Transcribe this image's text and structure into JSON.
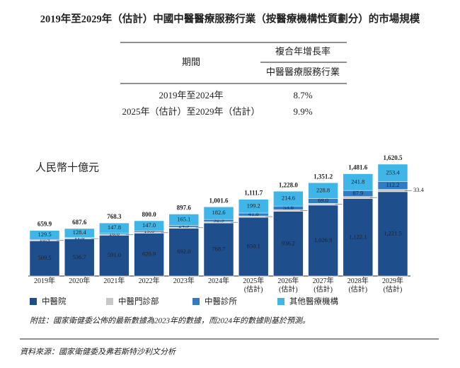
{
  "chart_data": {
    "type": "stacked-bar",
    "title": "2019年至2029年（估計）中國中醫醫療服務行業（按醫療機構性質劃分）的市場規模",
    "table": {
      "period_header": "期間",
      "cagr_header": "複合年增長率",
      "industry_header": "中醫醫療服務行業",
      "rows": [
        [
          "2019年至2024年",
          "8.7%"
        ],
        [
          "2025年（估計）至2029年（估計）",
          "9.9%"
        ]
      ]
    },
    "unit_label": "人民幣十億元",
    "categories": [
      "2019年",
      "2020年",
      "2021年",
      "2022年",
      "2023年",
      "2024年",
      "2025年\n(估計)",
      "2026年\n(估計)",
      "2027年\n(估計)",
      "2028年\n(估計)",
      "2029年\n(估計)"
    ],
    "series": [
      {
        "name": "中醫院",
        "color": "#1f4e8c",
        "text_color": "#ffffff",
        "values": [
          509.5,
          536.7,
          591.0,
          620.9,
          692.0,
          768.7,
          850.1,
          936.2,
          1026.9,
          1122.1,
          1221.5
        ],
        "value_labels": [
          "509.5",
          "536.7",
          "591.0",
          "620.9",
          "692.0",
          "768.7",
          "850.1",
          "936.2",
          "1,026.9",
          "1,122.1",
          "1,221.5"
        ]
      },
      {
        "name": "中醫門診部",
        "color": "#c8c8c8",
        "text_color": "#333333",
        "labels_outside": true,
        "values": [
          10.5,
          10.7,
          12.9,
          13.1,
          15.6,
          18.0,
          20.6,
          23.4,
          26.5,
          29.8,
          33.4
        ],
        "value_labels": [
          "10.5",
          "10.7",
          "12.9",
          "13.1",
          "15.6",
          "18.0",
          "20.6",
          "23.4",
          "26.5",
          "29.8",
          "33.4"
        ]
      },
      {
        "name": "中醫診所",
        "color": "#2f7bc4",
        "text_color": "#ffffff",
        "values": [
          10.4,
          11.8,
          16.6,
          19.0,
          24.9,
          32.3,
          41.8,
          53.8,
          69.0,
          87.9,
          112.2
        ],
        "value_labels": [
          "10.4",
          "11.8",
          "16.6",
          "19.0",
          "24.9",
          "32.3",
          "41.8",
          "53.8",
          "69.0",
          "87.9",
          "112.2"
        ]
      },
      {
        "name": "其他醫療機構",
        "color": "#3fb5e8",
        "text_color": "#1a2a4a",
        "values": [
          129.5,
          128.4,
          147.8,
          147.0,
          165.1,
          182.6,
          199.2,
          214.6,
          228.8,
          241.8,
          253.4
        ],
        "value_labels": [
          "129.5",
          "128.4",
          "147.8",
          "147.0",
          "165.1",
          "182.6",
          "199.2",
          "214.6",
          "228.8",
          "241.8",
          "253.4"
        ]
      }
    ],
    "totals": [
      659.9,
      687.6,
      768.3,
      800.0,
      897.6,
      1001.6,
      1111.7,
      1228.0,
      1351.2,
      1481.6,
      1620.5
    ],
    "total_labels": [
      "659.9",
      "687.6",
      "768.3",
      "800.0",
      "897.6",
      "1,001.6",
      "1,111.7",
      "1,228.0",
      "1,351.2",
      "1,481.6",
      "1,620.5"
    ],
    "note": "附註：國家衛健委公佈的最新數據為2023年的數據，而2024年的數據則基於預測。",
    "source": "資料來源：國家衛健委及弗若斯特沙利文分析"
  }
}
